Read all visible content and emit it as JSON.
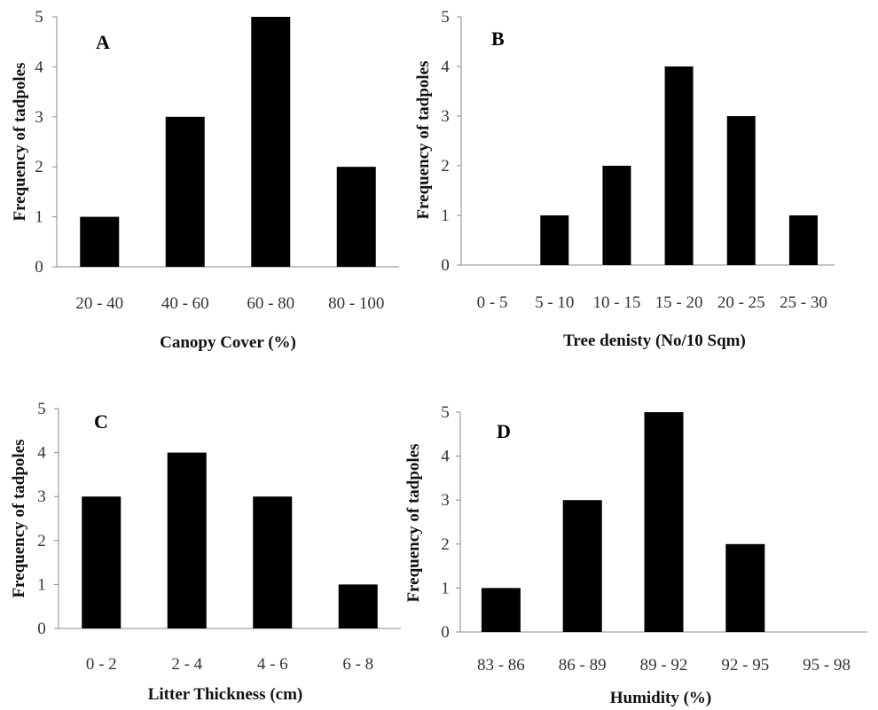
{
  "figure": {
    "bar_color": "#000000",
    "axis_color": "#8a8a8a"
  },
  "chart_data": [
    {
      "type": "bar",
      "panel_label": "A",
      "categories": [
        "20 - 40",
        "40 - 60",
        "60 - 80",
        "80 - 100"
      ],
      "values": [
        1,
        3,
        5,
        2
      ],
      "xlabel": "Canopy Cover (%)",
      "ylabel": "Frequency of tadpoles",
      "ylim": [
        0,
        5
      ],
      "yticks": [
        0,
        1,
        2,
        3,
        4,
        5
      ],
      "grid": false
    },
    {
      "type": "bar",
      "panel_label": "B",
      "categories": [
        "0 - 5",
        "5 - 10",
        "10 - 15",
        "15 - 20",
        "20 - 25",
        "25 - 30"
      ],
      "values": [
        0,
        1,
        2,
        4,
        3,
        1
      ],
      "xlabel": "Tree denisty (No/10 Sqm)",
      "ylabel": "Frequency of tadpoles",
      "ylim": [
        0,
        5
      ],
      "yticks": [
        0,
        1,
        2,
        3,
        4,
        5
      ],
      "grid": false
    },
    {
      "type": "bar",
      "panel_label": "C",
      "categories": [
        "0 - 2",
        "2 - 4",
        "4 - 6",
        "6 - 8"
      ],
      "values": [
        3,
        4,
        3,
        1
      ],
      "xlabel": "Litter Thickness (cm)",
      "ylabel": "Frequency of tadpoles",
      "ylim": [
        0,
        5
      ],
      "yticks": [
        0,
        1,
        2,
        3,
        4,
        5
      ],
      "grid": false
    },
    {
      "type": "bar",
      "panel_label": "D",
      "categories": [
        "83 - 86",
        "86 - 89",
        "89 - 92",
        "92 - 95",
        "95 - 98"
      ],
      "values": [
        1,
        3,
        5,
        2,
        0
      ],
      "xlabel": "Humidity (%)",
      "ylabel": "Frequency of tadpoles",
      "ylim": [
        0,
        5
      ],
      "yticks": [
        0,
        1,
        2,
        3,
        4,
        5
      ],
      "grid": false
    }
  ]
}
